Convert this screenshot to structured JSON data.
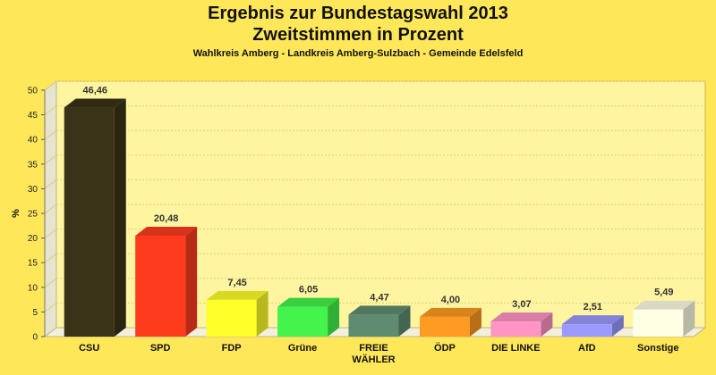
{
  "colors": {
    "background": "#ffe75a"
  },
  "chart_data": {
    "type": "bar",
    "title": "Ergebnis zur Bundestagswahl 2013",
    "subtitle": "Zweitstimmen in Prozent",
    "subsubtitle": "Wahlkreis Amberg - Landkreis Amberg-Sulzbach - Gemeinde Edelsfeld",
    "xlabel": "",
    "ylabel": "%",
    "ylim": [
      0,
      50
    ],
    "yticks": [
      "0",
      "5",
      "10",
      "15",
      "20",
      "25",
      "30",
      "35",
      "40",
      "45",
      "50"
    ],
    "grid": true,
    "categories": [
      "CSU",
      "SPD",
      "FDP",
      "Grüne",
      "FREIE WÄHLER",
      "ÖDP",
      "DIE LINKE",
      "AfD",
      "Sonstige"
    ],
    "category_labels": [
      [
        "CSU"
      ],
      [
        "SPD"
      ],
      [
        "FDP"
      ],
      [
        "Grüne"
      ],
      [
        "FREIE",
        "WÄHLER"
      ],
      [
        "ÖDP"
      ],
      [
        "DIE LINKE"
      ],
      [
        "AfD"
      ],
      [
        "Sonstige"
      ]
    ],
    "values": [
      46.46,
      20.48,
      7.45,
      6.05,
      4.47,
      4.0,
      3.07,
      2.51,
      5.49
    ],
    "value_labels": [
      "46,46",
      "20,48",
      "7,45",
      "6,05",
      "4,47",
      "4,00",
      "3,07",
      "2,51",
      "5,49"
    ],
    "bar_colors": [
      "#3a3318",
      "#ff3b1e",
      "#ffff2a",
      "#44f44d",
      "#5f8c70",
      "#ff9a22",
      "#ff95c4",
      "#9a9aff",
      "#ffffe6"
    ]
  }
}
